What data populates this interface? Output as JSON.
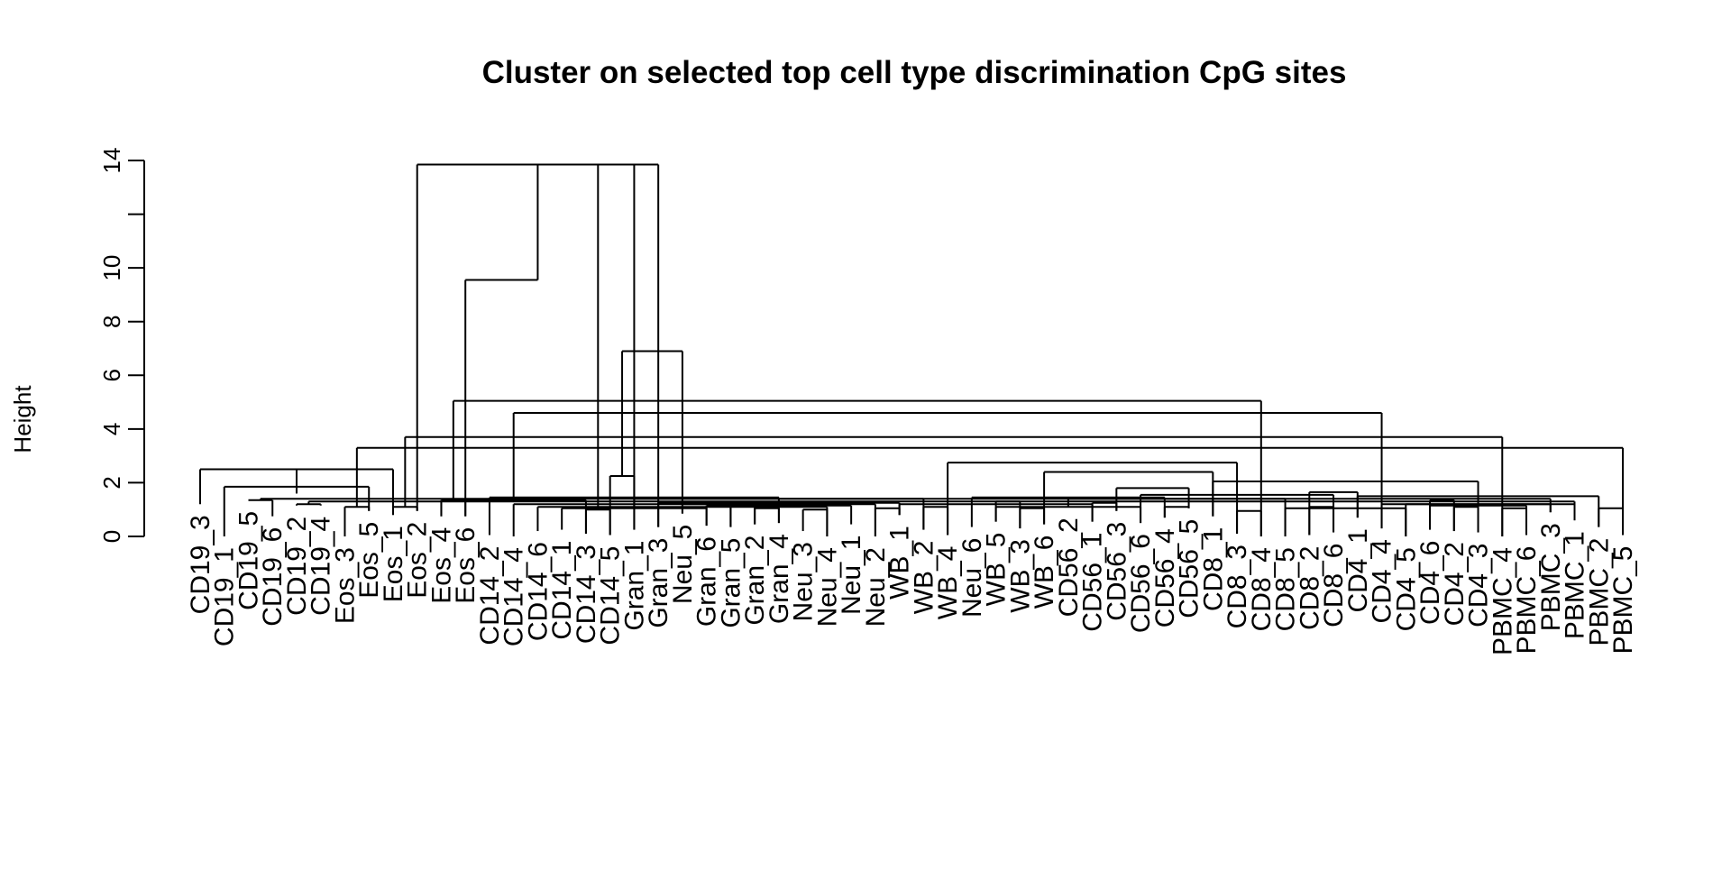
{
  "chart_data": {
    "type": "dendrogram",
    "title": "Cluster on selected top cell type discrimination CpG sites",
    "ylabel": "Height",
    "xlabel": "",
    "ylim": [
      0,
      14
    ],
    "yticks": [
      0,
      2,
      4,
      6,
      8,
      10,
      12,
      14
    ],
    "ytick_labels": [
      "0",
      "2",
      "4",
      "6",
      "8",
      "10",
      "",
      "14"
    ],
    "grid": false,
    "labels": [
      "CD19_3",
      "CD19_1",
      "CD19_5",
      "CD19_6",
      "CD19_2",
      "CD19_4",
      "Eos_3",
      "Eos_5",
      "Eos_1",
      "Eos_2",
      "Eos_4",
      "Eos_6",
      "CD14_2",
      "CD14_4",
      "CD14_6",
      "CD14_1",
      "CD14_3",
      "CD14_5",
      "Gran_1",
      "Gran_3",
      "Neu_5",
      "Gran_6",
      "Gran_5",
      "Gran_2",
      "Gran_4",
      "Neu_3",
      "Neu_4",
      "Neu_1",
      "Neu_2",
      "WB_1",
      "WB_2",
      "WB_4",
      "Neu_6",
      "WB_5",
      "WB_3",
      "WB_6",
      "CD56_2",
      "CD56_1",
      "CD56_3",
      "CD56_6",
      "CD56_4",
      "CD56_5",
      "CD8_1",
      "CD8_3",
      "CD8_4",
      "CD8_5",
      "CD8_2",
      "CD8_6",
      "CD4_1",
      "CD4_4",
      "CD4_5",
      "CD4_6",
      "CD4_2",
      "CD4_3",
      "PBMC_4",
      "PBMC_6",
      "PBMC_3",
      "PBMC_1",
      "PBMC_2",
      "PBMC_5"
    ],
    "leaf_heights": [
      1.2,
      0.0,
      1.35,
      0.75,
      1.15,
      1.15,
      0.0,
      0.95,
      0.8,
      0.95,
      0.75,
      0.75,
      0.05,
      0.0,
      0.2,
      0.25,
      0.1,
      0.05,
      0.25,
      0.35,
      0.85,
      0.4,
      0.35,
      0.45,
      0.5,
      0.2,
      0.0,
      0.45,
      0.0,
      0.8,
      0.25,
      0.05,
      0.35,
      0.55,
      0.3,
      0.45,
      1.1,
      0.55,
      0.95,
      0.5,
      0.7,
      1.05,
      0.75,
      0.1,
      0.0,
      0.0,
      0.05,
      0.15,
      0.7,
      0.3,
      0.0,
      0.25,
      0.2,
      0.15,
      0.0,
      0.05,
      0.9,
      0.6,
      0.35,
      0.05
    ],
    "merges": [
      [
        4,
        5,
        1.2
      ],
      [
        2,
        3,
        1.35
      ],
      [
        1,
        7,
        1.85
      ],
      [
        0,
        8,
        2.5
      ],
      [
        6,
        7,
        1.1
      ],
      [
        8,
        9,
        1.1
      ],
      [
        16,
        10,
        1.35
      ],
      [
        10,
        11,
        1.35
      ],
      [
        17,
        18,
        2.25
      ],
      [
        9,
        19,
        13.85
      ],
      [
        16,
        17,
        1.0
      ],
      [
        15,
        21,
        1.05
      ],
      [
        14,
        22,
        1.1
      ],
      [
        13,
        23,
        1.2
      ],
      [
        12,
        24,
        1.45
      ],
      [
        23,
        24,
        1.05
      ],
      [
        22,
        26,
        1.1
      ],
      [
        21,
        27,
        1.15
      ],
      [
        20,
        28,
        1.2
      ],
      [
        19,
        29,
        1.25
      ],
      [
        18,
        30,
        1.4
      ],
      [
        25,
        26,
        1.0
      ],
      [
        28,
        29,
        1.05
      ],
      [
        33,
        34,
        1.3
      ],
      [
        30,
        31,
        1.1
      ],
      [
        29,
        37,
        1.2
      ],
      [
        34,
        35,
        1.05
      ],
      [
        33,
        39,
        1.1
      ],
      [
        32,
        40,
        1.45
      ],
      [
        38,
        41,
        1.8
      ],
      [
        35,
        42,
        2.4
      ],
      [
        31,
        43,
        2.75
      ],
      [
        37,
        38,
        1.25
      ],
      [
        36,
        45,
        1.4
      ],
      [
        40,
        41,
        1.1
      ],
      [
        39,
        47,
        1.55
      ],
      [
        46,
        48,
        1.65
      ],
      [
        43,
        44,
        0.95
      ],
      [
        50,
        45,
        1.05
      ],
      [
        46,
        47,
        1.1
      ],
      [
        51,
        52,
        1.35
      ],
      [
        42,
        53,
        2.05
      ],
      [
        52,
        53,
        1.1
      ],
      [
        51,
        55,
        1.15
      ],
      [
        50,
        56,
        1.2
      ],
      [
        49,
        57,
        1.2
      ],
      [
        48,
        58,
        1.5
      ],
      [
        58,
        59,
        1.05
      ],
      [
        57,
        60,
        1.3
      ],
      [
        56,
        61,
        1.4
      ],
      [
        54,
        55,
        1.05
      ],
      [
        63,
        62,
        1.6
      ],
      [
        59,
        64,
        3.3
      ],
      [
        54,
        65,
        3.7
      ],
      [
        49,
        66,
        4.6
      ],
      [
        44,
        67,
        5.05
      ],
      [
        20,
        68,
        6.9
      ],
      [
        11,
        69,
        9.55
      ],
      [
        70,
        71,
        13.85
      ]
    ]
  }
}
